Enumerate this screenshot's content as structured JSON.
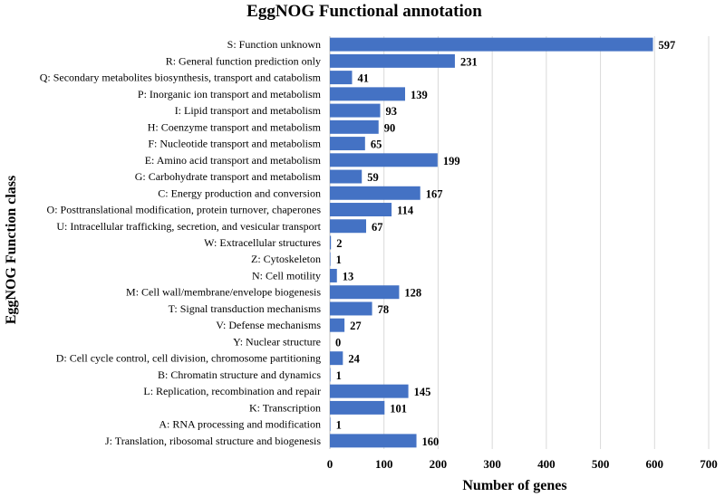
{
  "chart_data": {
    "type": "bar",
    "orientation": "horizontal",
    "title": "EggNOG Functional annotation",
    "xlabel": "Number of genes",
    "ylabel": "EggNOG Function class",
    "xlim": [
      0,
      700
    ],
    "xticks": [
      0,
      100,
      200,
      300,
      400,
      500,
      600,
      700
    ],
    "grid": true,
    "bar_color": "#4472C4",
    "categories": [
      "S: Function unknown",
      "R: General function prediction only",
      "Q: Secondary metabolites biosynthesis, transport and catabolism",
      "P: Inorganic ion transport and metabolism",
      "I: Lipid transport and metabolism",
      "H: Coenzyme transport and metabolism",
      "F: Nucleotide transport and metabolism",
      "E: Amino acid transport and metabolism",
      "G: Carbohydrate transport and metabolism",
      "C: Energy production and conversion",
      "O: Posttranslational modification, protein turnover, chaperones",
      "U: Intracellular trafficking, secretion, and vesicular transport",
      "W: Extracellular structures",
      "Z: Cytoskeleton",
      "N: Cell motility",
      "M: Cell wall/membrane/envelope biogenesis",
      "T: Signal transduction mechanisms",
      "V: Defense mechanisms",
      "Y: Nuclear structure",
      "D: Cell cycle control, cell division, chromosome partitioning",
      "B: Chromatin structure and dynamics",
      "L: Replication, recombination and repair",
      "K: Transcription",
      "A: RNA processing and modification",
      "J: Translation, ribosomal structure and biogenesis"
    ],
    "values": [
      597,
      231,
      41,
      139,
      93,
      90,
      65,
      199,
      59,
      167,
      114,
      67,
      2,
      1,
      13,
      128,
      78,
      27,
      0,
      24,
      1,
      145,
      101,
      1,
      160
    ]
  }
}
